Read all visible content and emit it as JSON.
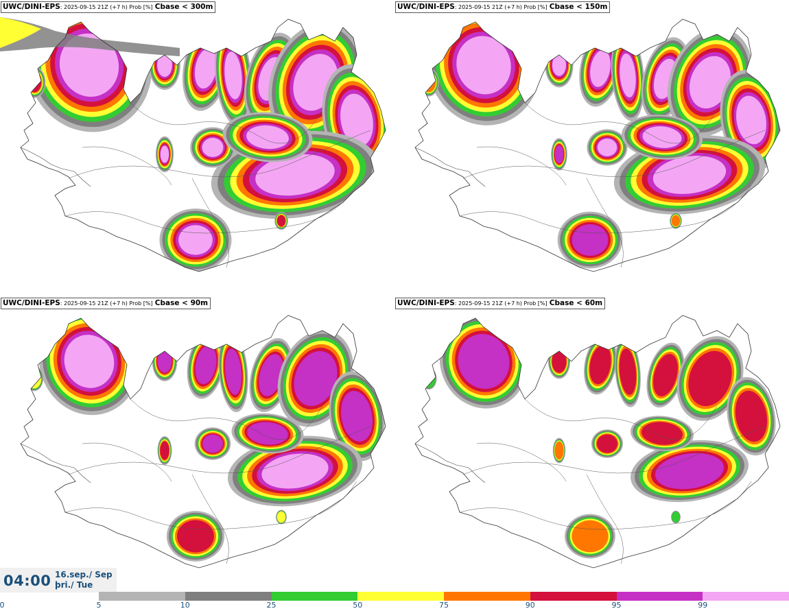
{
  "panels": [
    {
      "model": "UWC/DINI-EPS",
      "meta": ": 2025-09-15 21Z (+7 h) Prob [%]",
      "field": "Cbase < 300m",
      "level": 4
    },
    {
      "model": "UWC/DINI-EPS",
      "meta": ": 2025-09-15 21Z (+7 h) Prob [%]",
      "field": "Cbase < 150m",
      "level": 3
    },
    {
      "model": "UWC/DINI-EPS",
      "meta": ": 2025-09-15 21Z (+7 h) Prob [%]",
      "field": "Cbase < 90m",
      "level": 2
    },
    {
      "model": "UWC/DINI-EPS",
      "meta": ": 2025-09-15 21Z (+7 h) Prob [%]",
      "field": "Cbase < 60m",
      "level": 1
    }
  ],
  "valid_time": {
    "time": "04:00",
    "date_line1": "16.sep./ Sep",
    "date_line2": "þri./ Tue"
  },
  "colorbar": {
    "ticks": [
      "0",
      "5",
      "10",
      "25",
      "50",
      "75",
      "90",
      "95",
      "99"
    ],
    "colors": [
      "#b4b4b4",
      "#7f7f7f",
      "#33cc33",
      "#ffff33",
      "#ff7700",
      "#d4103d",
      "#c530c5",
      "#f4a6f4"
    ]
  }
}
